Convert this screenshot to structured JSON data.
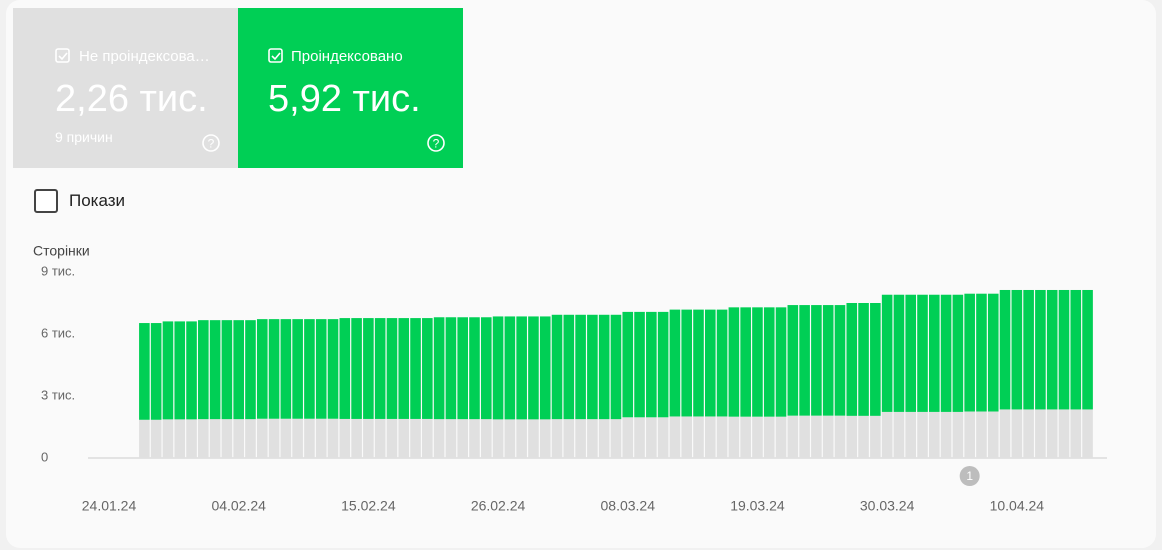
{
  "cards": [
    {
      "value": "2,26 тис.",
      "note": "9 причин"
    },
    {
      "value": "5,92 тис."
    }
  ],
  "toggle_label": "Покази",
  "chart_data": {
    "type": "bar",
    "stacked": true,
    "y_label": "Сторінки",
    "categories": [
      "24.01.24",
      null,
      null,
      null,
      null,
      null,
      null,
      null,
      null,
      null,
      null,
      "04.02.24",
      null,
      null,
      null,
      null,
      null,
      null,
      null,
      null,
      null,
      null,
      "15.02.24",
      null,
      null,
      null,
      null,
      null,
      null,
      null,
      null,
      null,
      null,
      "26.02.24",
      null,
      null,
      null,
      null,
      null,
      null,
      null,
      null,
      null,
      null,
      "08.03.24",
      null,
      null,
      null,
      null,
      null,
      null,
      null,
      null,
      null,
      null,
      "19.03.24",
      null,
      null,
      null,
      null,
      null,
      null,
      null,
      null,
      null,
      null,
      "30.03.24",
      null,
      null,
      null,
      null,
      null,
      null,
      null,
      null,
      null,
      null,
      "10.04.24",
      null,
      null,
      null,
      null,
      null,
      null
    ],
    "series": [
      {
        "name": "Не проіндексова…",
        "color": "#e0e0e0",
        "values": [
          null,
          null,
          null,
          1850,
          1850,
          1870,
          1870,
          1870,
          1880,
          1880,
          1880,
          1880,
          1880,
          1900,
          1900,
          1900,
          1900,
          1900,
          1900,
          1900,
          1890,
          1890,
          1890,
          1890,
          1890,
          1890,
          1890,
          1890,
          1880,
          1880,
          1880,
          1880,
          1880,
          1870,
          1870,
          1870,
          1870,
          1870,
          1880,
          1880,
          1880,
          1880,
          1880,
          1880,
          1970,
          1970,
          1970,
          1970,
          2010,
          2010,
          2010,
          2010,
          2010,
          2000,
          2000,
          2000,
          2000,
          2000,
          2050,
          2050,
          2050,
          2050,
          2050,
          2040,
          2040,
          2040,
          2230,
          2230,
          2230,
          2230,
          2230,
          2230,
          2230,
          2250,
          2250,
          2250,
          2350,
          2350,
          2350,
          2350,
          2350,
          2350,
          2350,
          2350
        ]
      },
      {
        "name": "Проіндексовано",
        "color": "#00cf55",
        "values": [
          null,
          null,
          null,
          4680,
          4680,
          4740,
          4740,
          4740,
          4790,
          4790,
          4790,
          4790,
          4790,
          4820,
          4820,
          4820,
          4820,
          4820,
          4820,
          4820,
          4880,
          4880,
          4880,
          4880,
          4880,
          4880,
          4880,
          4880,
          4930,
          4930,
          4930,
          4930,
          4930,
          4980,
          4980,
          4980,
          4980,
          4980,
          5050,
          5050,
          5050,
          5050,
          5050,
          5050,
          5100,
          5100,
          5100,
          5100,
          5170,
          5170,
          5170,
          5170,
          5170,
          5290,
          5290,
          5290,
          5290,
          5290,
          5350,
          5350,
          5350,
          5350,
          5350,
          5460,
          5460,
          5460,
          5670,
          5670,
          5670,
          5670,
          5670,
          5670,
          5670,
          5700,
          5700,
          5700,
          5780,
          5780,
          5780,
          5780,
          5780,
          5780,
          5780,
          5780
        ]
      }
    ],
    "ylim": [
      0,
      9000
    ],
    "yticks": [
      {
        "value": 0,
        "label": "0"
      },
      {
        "value": 3000,
        "label": "3 тис."
      },
      {
        "value": 6000,
        "label": "6 тис."
      },
      {
        "value": 9000,
        "label": "9 тис."
      }
    ],
    "annotations": [
      {
        "index": 73,
        "text": "1"
      }
    ]
  }
}
